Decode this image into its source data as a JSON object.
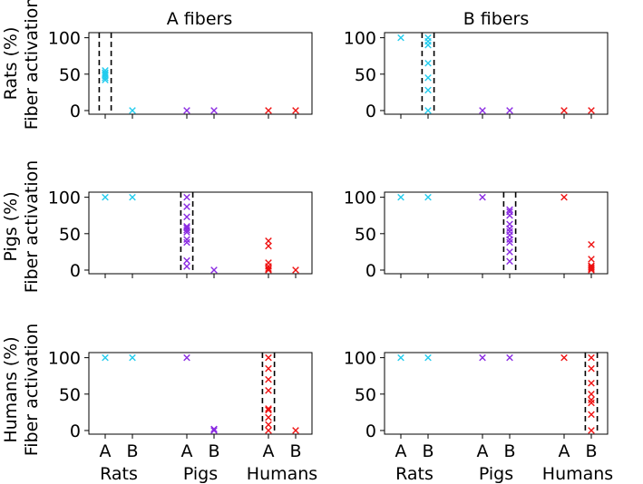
{
  "chart_data": {
    "type": "scatter",
    "column_titles": [
      "A fibers",
      "B fibers"
    ],
    "row_labels": [
      [
        "Rats (%)",
        "Fiber activation"
      ],
      [
        "Pigs (%)",
        "Fiber activation"
      ],
      [
        "Humans (%)",
        "Fiber activation"
      ]
    ],
    "x_tick_labels": [
      "A",
      "B",
      "A",
      "B",
      "A",
      "B"
    ],
    "x_group_labels": [
      "Rats",
      "Pigs",
      "Humans"
    ],
    "y_ticks": [
      0,
      50,
      100
    ],
    "y_tick_labels": [
      "0",
      "50",
      "100"
    ],
    "ylim": [
      -5,
      107
    ],
    "category_positions": [
      1,
      2,
      4,
      5,
      7,
      8
    ],
    "xlim": [
      0.4,
      8.6
    ],
    "marker": "x",
    "colors": {
      "Rats": "#22ccee",
      "Pigs": "#8a2be2",
      "Humans": "#ee1111"
    },
    "panels": [
      {
        "row": "Rats",
        "fiber": "A",
        "highlight_category": 1,
        "points": [
          {
            "x": 1,
            "group": "Rats",
            "values": [
              42,
              45,
              48,
              50,
              52,
              55
            ]
          },
          {
            "x": 2,
            "group": "Rats",
            "values": [
              0
            ]
          },
          {
            "x": 4,
            "group": "Pigs",
            "values": [
              0
            ]
          },
          {
            "x": 5,
            "group": "Pigs",
            "values": [
              0
            ]
          },
          {
            "x": 7,
            "group": "Humans",
            "values": [
              0
            ]
          },
          {
            "x": 8,
            "group": "Humans",
            "values": [
              0
            ]
          }
        ]
      },
      {
        "row": "Rats",
        "fiber": "B",
        "highlight_category": 2,
        "points": [
          {
            "x": 1,
            "group": "Rats",
            "values": [
              100
            ]
          },
          {
            "x": 2,
            "group": "Rats",
            "values": [
              0,
              28,
              45,
              65,
              90,
              95,
              100
            ]
          },
          {
            "x": 4,
            "group": "Pigs",
            "values": [
              0
            ]
          },
          {
            "x": 5,
            "group": "Pigs",
            "values": [
              0
            ]
          },
          {
            "x": 7,
            "group": "Humans",
            "values": [
              0
            ]
          },
          {
            "x": 8,
            "group": "Humans",
            "values": [
              0
            ]
          }
        ]
      },
      {
        "row": "Pigs",
        "fiber": "A",
        "highlight_category": 4,
        "points": [
          {
            "x": 1,
            "group": "Rats",
            "values": [
              100
            ]
          },
          {
            "x": 2,
            "group": "Rats",
            "values": [
              100
            ]
          },
          {
            "x": 4,
            "group": "Pigs",
            "values": [
              5,
              13,
              38,
              42,
              52,
              55,
              58,
              60,
              73,
              87,
              100
            ]
          },
          {
            "x": 5,
            "group": "Pigs",
            "values": [
              0
            ]
          },
          {
            "x": 7,
            "group": "Humans",
            "values": [
              0,
              2,
              5,
              10,
              33,
              40
            ]
          },
          {
            "x": 8,
            "group": "Humans",
            "values": [
              0
            ]
          }
        ]
      },
      {
        "row": "Pigs",
        "fiber": "B",
        "highlight_category": 5,
        "points": [
          {
            "x": 1,
            "group": "Rats",
            "values": [
              100
            ]
          },
          {
            "x": 2,
            "group": "Rats",
            "values": [
              100
            ]
          },
          {
            "x": 4,
            "group": "Pigs",
            "values": [
              100
            ]
          },
          {
            "x": 5,
            "group": "Pigs",
            "values": [
              12,
              25,
              38,
              42,
              48,
              53,
              57,
              63,
              75,
              80,
              83
            ]
          },
          {
            "x": 7,
            "group": "Humans",
            "values": [
              100
            ]
          },
          {
            "x": 8,
            "group": "Humans",
            "values": [
              0,
              2,
              4,
              6,
              15,
              35
            ]
          }
        ]
      },
      {
        "row": "Humans",
        "fiber": "A",
        "highlight_category": 7,
        "points": [
          {
            "x": 1,
            "group": "Rats",
            "values": [
              100
            ]
          },
          {
            "x": 2,
            "group": "Rats",
            "values": [
              100
            ]
          },
          {
            "x": 4,
            "group": "Pigs",
            "values": [
              100
            ]
          },
          {
            "x": 5,
            "group": "Pigs",
            "values": [
              0,
              2
            ]
          },
          {
            "x": 7,
            "group": "Humans",
            "values": [
              0,
              8,
              18,
              28,
              30,
              55,
              70,
              85,
              100
            ]
          },
          {
            "x": 8,
            "group": "Humans",
            "values": [
              0
            ]
          }
        ]
      },
      {
        "row": "Humans",
        "fiber": "B",
        "highlight_category": 8,
        "points": [
          {
            "x": 1,
            "group": "Rats",
            "values": [
              100
            ]
          },
          {
            "x": 2,
            "group": "Rats",
            "values": [
              100
            ]
          },
          {
            "x": 4,
            "group": "Pigs",
            "values": [
              100
            ]
          },
          {
            "x": 5,
            "group": "Pigs",
            "values": [
              100
            ]
          },
          {
            "x": 7,
            "group": "Humans",
            "values": [
              100
            ]
          },
          {
            "x": 8,
            "group": "Humans",
            "values": [
              0,
              22,
              38,
              42,
              50,
              65,
              85,
              100
            ]
          }
        ]
      }
    ]
  }
}
